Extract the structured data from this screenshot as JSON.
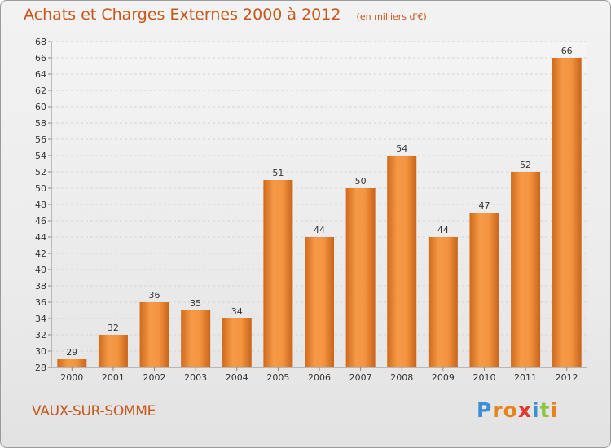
{
  "title": "Achats et Charges Externes 2000 à 2012",
  "unit": "(en milliers d'€)",
  "commune": "VAUX-SUR-SOMME",
  "brand": {
    "letters": [
      "P",
      "r",
      "o",
      "x",
      "i",
      "t",
      "i"
    ],
    "colors": [
      "#3b8fd6",
      "#e8821a",
      "#e8821a",
      "#e03a2f",
      "#3b8fd6",
      "#8cc63f",
      "#e8821a"
    ]
  },
  "chart_data": {
    "type": "bar",
    "categories": [
      "2000",
      "2001",
      "2002",
      "2003",
      "2004",
      "2005",
      "2006",
      "2007",
      "2008",
      "2009",
      "2010",
      "2011",
      "2012"
    ],
    "values": [
      29,
      32,
      36,
      35,
      34,
      51,
      44,
      50,
      54,
      44,
      47,
      52,
      66
    ],
    "ylim": [
      28,
      68
    ],
    "yticks": [
      28,
      30,
      32,
      34,
      36,
      38,
      40,
      42,
      44,
      46,
      48,
      50,
      52,
      54,
      56,
      58,
      60,
      62,
      64,
      66,
      68
    ],
    "grid": true,
    "bar_color": "#f0923a"
  }
}
